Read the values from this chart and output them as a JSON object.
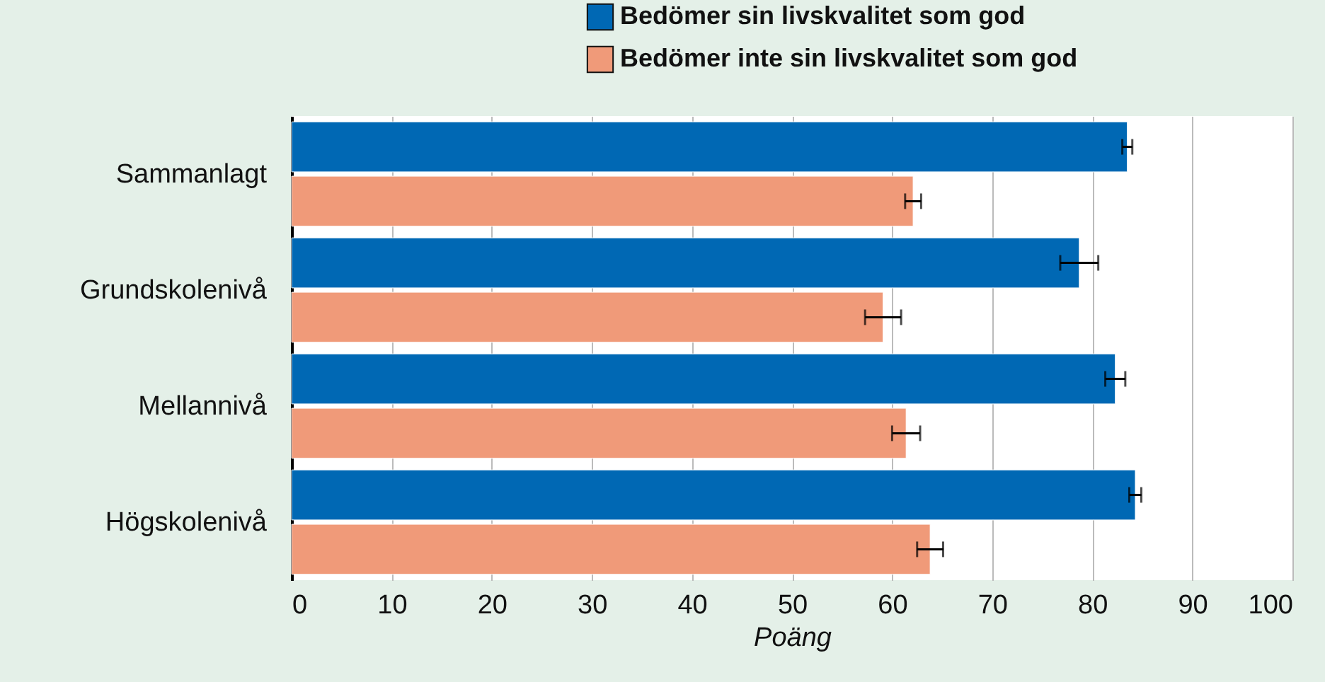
{
  "chart_data": {
    "type": "bar",
    "orientation": "horizontal",
    "xlabel": "Poäng",
    "categories": [
      "Sammanlagt",
      "Grundskolenivå",
      "Mellannivå",
      "Högskolenivå"
    ],
    "series": [
      {
        "name": "Bedömer sin livskvalitet som god",
        "color": "#0068b4",
        "values": [
          83.5,
          78.7,
          82.3,
          84.3
        ],
        "errors": [
          0.5,
          1.9,
          1.0,
          0.6
        ]
      },
      {
        "name": "Bedömer inte sin livskvalitet som god",
        "color": "#f09a79",
        "values": [
          62.1,
          59.1,
          61.4,
          63.8
        ],
        "errors": [
          0.8,
          1.8,
          1.4,
          1.3
        ]
      }
    ],
    "xlim": [
      0,
      100
    ],
    "xticks": [
      0,
      10,
      20,
      30,
      40,
      50,
      60,
      70,
      80,
      90,
      100
    ],
    "grid": "x",
    "legend": "top right"
  }
}
